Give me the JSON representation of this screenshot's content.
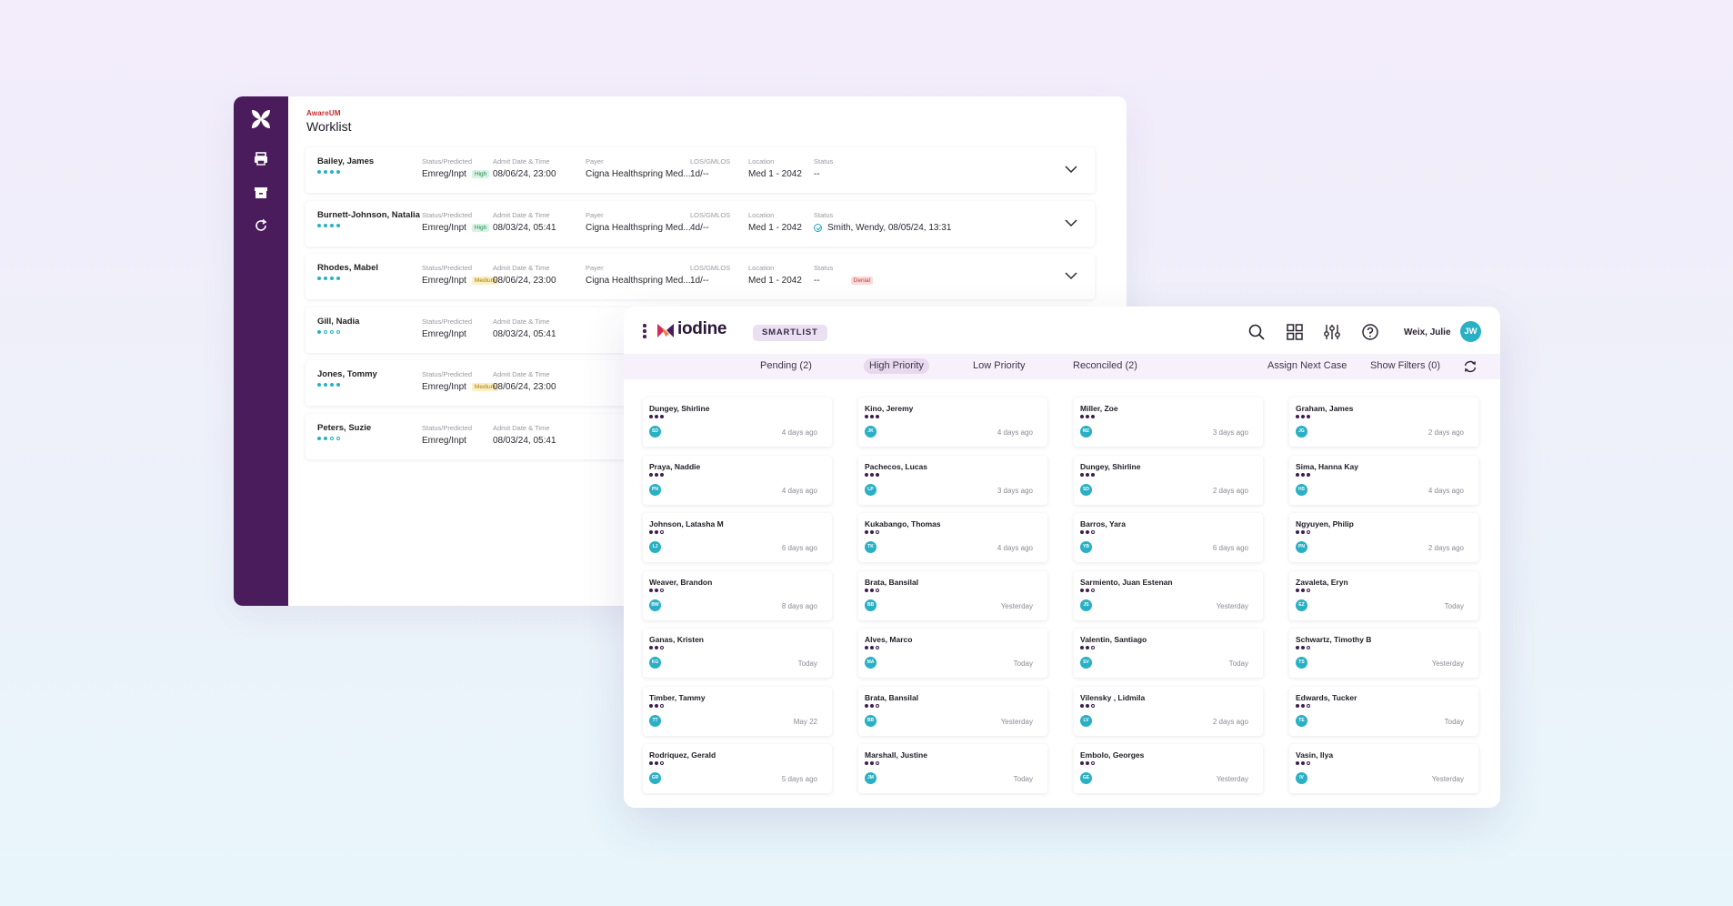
{
  "colors": {
    "brand_purple": "#4a1c5c",
    "accent_teal": "#29b0c4",
    "tab_active_bg": "#e8d9ef"
  },
  "worklist": {
    "app_name": "AwareUM",
    "title": "Worklist",
    "sidebar_icons": [
      "print-icon",
      "archive-icon",
      "refresh-icon"
    ],
    "rows": [
      {
        "name": "Bailey, James",
        "priority_dots": 4,
        "status_label": "Status/Predicted",
        "status_value": "Emreg/Inpt",
        "predicted_tag": "High",
        "admit_label": "Admit Date & Time",
        "admit_value": "08/06/24, 23:00",
        "payer_label": "Payer",
        "payer_value": "Cigna Healthspring Med...",
        "los_label": "LOS/GMLOS",
        "los_value": "1d/--",
        "location_label": "Location",
        "location_value": "Med 1 - 2042",
        "status2_label": "Status",
        "status2_value": "--",
        "status2_tag": ""
      },
      {
        "name": "Burnett-Johnson, Natalia",
        "priority_dots": 4,
        "status_label": "Status/Predicted",
        "status_value": "Emreg/Inpt",
        "predicted_tag": "High",
        "admit_label": "Admit Date & Time",
        "admit_value": "08/03/24, 05:41",
        "payer_label": "Payer",
        "payer_value": "Cigna Healthspring Med...",
        "los_label": "LOS/GMLOS",
        "los_value": "4d/--",
        "location_label": "Location",
        "location_value": "Med 1 - 2042",
        "status2_label": "Status",
        "status2_value": "Smith, Wendy, 08/05/24, 13:31",
        "status2_tag": ""
      },
      {
        "name": "Rhodes, Mabel",
        "priority_dots": 4,
        "status_label": "Status/Predicted",
        "status_value": "Emreg/Inpt",
        "predicted_tag": "Medium",
        "admit_label": "Admit Date & Time",
        "admit_value": "08/06/24, 23:00",
        "payer_label": "Payer",
        "payer_value": "Cigna Healthspring Med...",
        "los_label": "LOS/GMLOS",
        "los_value": "1d/--",
        "location_label": "Location",
        "location_value": "Med 1 - 2042",
        "status2_label": "Status",
        "status2_value": "--",
        "status2_tag": "Denial"
      },
      {
        "name": "Gill, Nadia",
        "priority_dots": 1,
        "status_label": "Status/Predicted",
        "status_value": "Emreg/Inpt",
        "predicted_tag": "",
        "admit_label": "Admit Date & Time",
        "admit_value": "08/03/24, 05:41"
      },
      {
        "name": "Jones, Tommy",
        "priority_dots": 4,
        "status_label": "Status/Predicted",
        "status_value": "Emreg/Inpt",
        "predicted_tag": "Medium",
        "admit_label": "Admit Date & Time",
        "admit_value": "08/06/24, 23:00"
      },
      {
        "name": "Peters, Suzie",
        "priority_dots": 2,
        "status_label": "Status/Predicted",
        "status_value": "Emreg/Inpt",
        "predicted_tag": "",
        "admit_label": "Admit Date & Time",
        "admit_value": "08/03/24, 05:41"
      }
    ]
  },
  "smartlist": {
    "brand": "iodine",
    "badge": "SMARTLIST",
    "user_name": "Weix, Julie",
    "user_initials": "JW",
    "tabs": [
      "Pending (2)",
      "High Priority",
      "Low Priority",
      "Reconciled (2)"
    ],
    "active_tab": "High Priority",
    "assign_label": "Assign Next Case",
    "filters_label": "Show Filters (0)",
    "columns": [
      [
        {
          "name": "Dungey, Shirline",
          "dots": 3,
          "initials": "SD",
          "time": "4 days ago"
        },
        {
          "name": "Praya, Naddie",
          "dots": 3,
          "initials": "PN",
          "time": "4 days ago"
        },
        {
          "name": "Johnson, Latasha M",
          "dots": 2,
          "initials": "LJ",
          "time": "6 days ago"
        },
        {
          "name": "Weaver, Brandon",
          "dots": 2,
          "initials": "BW",
          "time": "8 days ago"
        },
        {
          "name": "Ganas, Kristen",
          "dots": 2,
          "initials": "KG",
          "time": "Today"
        },
        {
          "name": "Timber, Tammy",
          "dots": 2,
          "initials": "TT",
          "time": "May 22"
        },
        {
          "name": "Rodriquez, Gerald",
          "dots": 2,
          "initials": "GR",
          "time": "5 days ago"
        }
      ],
      [
        {
          "name": "Kino, Jeremy",
          "dots": 3,
          "initials": "JK",
          "time": "4 days ago"
        },
        {
          "name": "Pachecos, Lucas",
          "dots": 3,
          "initials": "LP",
          "time": "3 days ago"
        },
        {
          "name": "Kukabango, Thomas",
          "dots": 2,
          "initials": "TK",
          "time": "4 days ago"
        },
        {
          "name": "Brata, Bansilal",
          "dots": 2,
          "initials": "BB",
          "time": "Yesterday"
        },
        {
          "name": "Alves, Marco",
          "dots": 2,
          "initials": "MA",
          "time": "Today"
        },
        {
          "name": "Brata, Bansilal",
          "dots": 2,
          "initials": "BB",
          "time": "Yesterday"
        },
        {
          "name": "Marshall, Justine",
          "dots": 2,
          "initials": "JM",
          "time": "Today"
        }
      ],
      [
        {
          "name": "Miller, Zoe",
          "dots": 3,
          "initials": "MZ",
          "time": "3 days ago"
        },
        {
          "name": "Dungey, Shirline",
          "dots": 3,
          "initials": "SD",
          "time": "2 days ago"
        },
        {
          "name": "Barros, Yara",
          "dots": 2,
          "initials": "YB",
          "time": "6 days ago"
        },
        {
          "name": "Sarmiento, Juan Estenan",
          "dots": 2,
          "initials": "JS",
          "time": "Yesterday"
        },
        {
          "name": "Valentin, Santiago",
          "dots": 2,
          "initials": "SV",
          "time": "Today"
        },
        {
          "name": "Vilensky , Lidmila",
          "dots": 2,
          "initials": "LV",
          "time": "2 days ago"
        },
        {
          "name": "Embolo, Georges",
          "dots": 2,
          "initials": "GE",
          "time": "Yesterday"
        }
      ],
      [
        {
          "name": "Graham, James",
          "dots": 3,
          "initials": "JG",
          "time": "2 days ago"
        },
        {
          "name": "Sima, Hanna Kay",
          "dots": 3,
          "initials": "HS",
          "time": "4 days ago"
        },
        {
          "name": "Ngyuyen, Philip",
          "dots": 2,
          "initials": "PN",
          "time": "2 days ago"
        },
        {
          "name": "Zavaleta, Eryn",
          "dots": 2,
          "initials": "EZ",
          "time": "Today"
        },
        {
          "name": "Schwartz, Timothy B",
          "dots": 2,
          "initials": "TS",
          "time": "Yesterday"
        },
        {
          "name": "Edwards, Tucker",
          "dots": 2,
          "initials": "TE",
          "time": "Today"
        },
        {
          "name": "Vasin, Ilya",
          "dots": 2,
          "initials": "IV",
          "time": "Yesterday"
        }
      ]
    ]
  }
}
